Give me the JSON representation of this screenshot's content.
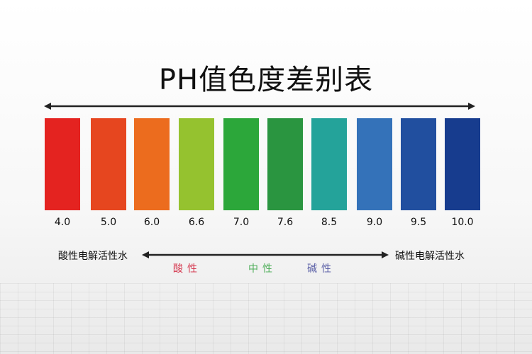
{
  "title": "PH值色度差别表",
  "scale": [
    {
      "value": "4.0",
      "color": "#e42320"
    },
    {
      "value": "5.0",
      "color": "#e6461f"
    },
    {
      "value": "6.0",
      "color": "#ec6c1e"
    },
    {
      "value": "6.6",
      "color": "#95c22f"
    },
    {
      "value": "7.0",
      "color": "#2ca73a"
    },
    {
      "value": "7.6",
      "color": "#2a9540"
    },
    {
      "value": "8.5",
      "color": "#24a39a"
    },
    {
      "value": "9.0",
      "color": "#3472b9"
    },
    {
      "value": "9.5",
      "color": "#214f9f"
    },
    {
      "value": "10.0",
      "color": "#173c8e"
    }
  ],
  "left_label": "酸性电解活性水",
  "right_label": "碱性电解活性水",
  "categories": [
    {
      "label": "酸性",
      "color": "#d5384f"
    },
    {
      "label": "中性",
      "color": "#4fae5a"
    },
    {
      "label": "碱性",
      "color": "#5a5fa6"
    }
  ]
}
